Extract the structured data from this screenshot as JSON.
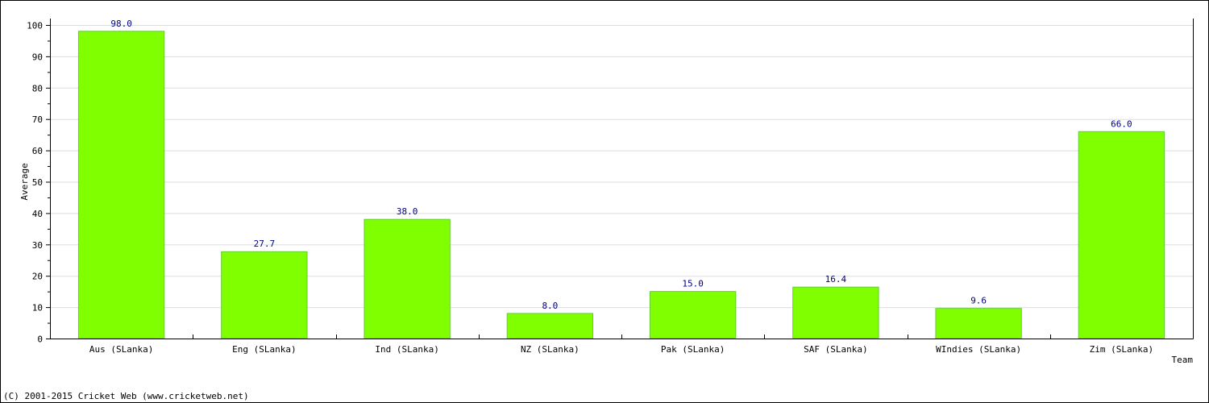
{
  "chart_data": {
    "type": "bar",
    "categories": [
      "Aus (SLanka)",
      "Eng (SLanka)",
      "Ind (SLanka)",
      "NZ (SLanka)",
      "Pak (SLanka)",
      "SAF (SLanka)",
      "WIndies (SLanka)",
      "Zim (SLanka)"
    ],
    "values": [
      98.0,
      27.7,
      38.0,
      8.0,
      15.0,
      16.4,
      9.6,
      66.0
    ],
    "data_labels": [
      "98.0",
      "27.7",
      "38.0",
      "8.0",
      "15.0",
      "16.4",
      "9.6",
      "66.0"
    ],
    "title": "",
    "xlabel": "Team",
    "ylabel": "Average",
    "ylim": [
      0,
      100
    ],
    "yticks": [
      0,
      10,
      20,
      30,
      40,
      50,
      60,
      70,
      80,
      90,
      100
    ],
    "grid": true,
    "legend": "none",
    "bar_color": "#80ff00",
    "bar_edge_color": "#66cc33",
    "label_color": "#000080",
    "grid_color": "#dddddd"
  },
  "footer": "(C) 2001-2015 Cricket Web (www.cricketweb.net)"
}
